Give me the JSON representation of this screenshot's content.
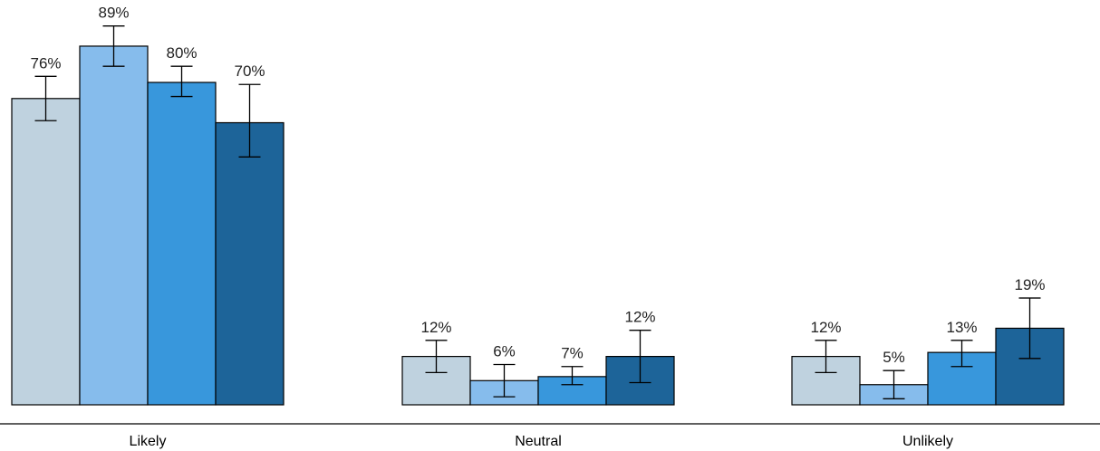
{
  "chart_data": {
    "type": "bar",
    "title": "",
    "xlabel": "",
    "ylabel": "",
    "ylim": [
      0,
      100
    ],
    "grid": false,
    "legend": "none",
    "categories": [
      "Likely",
      "Neutral",
      "Unlikely"
    ],
    "colors": [
      "#bfd2df",
      "#86bcec",
      "#3897dc",
      "#1d6499"
    ],
    "series": [
      {
        "values": [
          76,
          12,
          12
        ],
        "labels": [
          "76%",
          "12%",
          "12%"
        ],
        "err_low": [
          70.5,
          8,
          8
        ],
        "err_high": [
          81.5,
          16,
          16
        ]
      },
      {
        "values": [
          89,
          6,
          5
        ],
        "labels": [
          "89%",
          "6%",
          "5%"
        ],
        "err_low": [
          84,
          2,
          1.5
        ],
        "err_high": [
          94,
          10,
          8.5
        ]
      },
      {
        "values": [
          80,
          7,
          13
        ],
        "labels": [
          "80%",
          "7%",
          "13%"
        ],
        "err_low": [
          76.5,
          5,
          9.5
        ],
        "err_high": [
          84,
          9.5,
          16
        ]
      },
      {
        "values": [
          70,
          12,
          19
        ],
        "labels": [
          "70%",
          "12%",
          "19%"
        ],
        "err_low": [
          61.5,
          5.5,
          11.5
        ],
        "err_high": [
          79.5,
          18.5,
          26.5
        ]
      }
    ]
  }
}
